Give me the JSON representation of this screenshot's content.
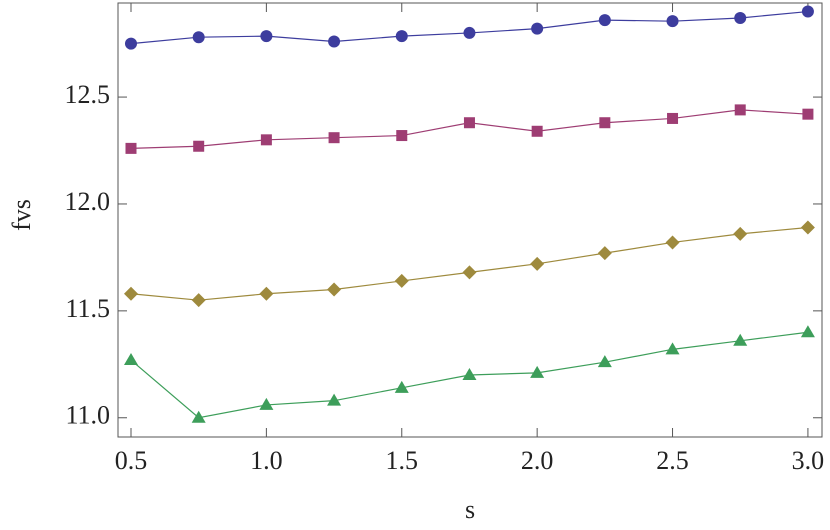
{
  "chart_data": {
    "type": "line",
    "xlabel": "s",
    "ylabel": "fvs",
    "x": [
      0.5,
      0.75,
      1.0,
      1.25,
      1.5,
      1.75,
      2.0,
      2.25,
      2.5,
      2.75,
      3.0
    ],
    "series": [
      {
        "color": "#3d3d9e",
        "marker": "circle",
        "values": [
          12.75,
          12.78,
          12.785,
          12.76,
          12.785,
          12.8,
          12.82,
          12.86,
          12.855,
          12.87,
          12.9
        ]
      },
      {
        "color": "#9e3d73",
        "marker": "square",
        "values": [
          12.26,
          12.27,
          12.3,
          12.31,
          12.32,
          12.38,
          12.34,
          12.38,
          12.4,
          12.44,
          12.42
        ]
      },
      {
        "color": "#9e8a3d",
        "marker": "diamond",
        "values": [
          11.58,
          11.55,
          11.58,
          11.6,
          11.64,
          11.68,
          11.72,
          11.77,
          11.82,
          11.86,
          11.89
        ]
      },
      {
        "color": "#3d9e5a",
        "marker": "triangle",
        "values": [
          11.27,
          11.0,
          11.06,
          11.08,
          11.14,
          11.2,
          11.21,
          11.26,
          11.32,
          11.36,
          11.4
        ]
      }
    ],
    "xlim": [
      0.452,
      3.052
    ],
    "xticks": [
      0.5,
      {
        "value": 1,
        "label": "1.0"
      },
      1.5,
      {
        "value": 2,
        "label": "2.0"
      },
      2.5,
      {
        "value": 3,
        "label": "3.0"
      }
    ],
    "ylim": [
      10.91,
      12.94
    ],
    "yticks": [
      {
        "value": 11,
        "label": "11.0"
      },
      11.5,
      {
        "value": 12,
        "label": "12.0"
      },
      12.5
    ],
    "grid": false
  }
}
